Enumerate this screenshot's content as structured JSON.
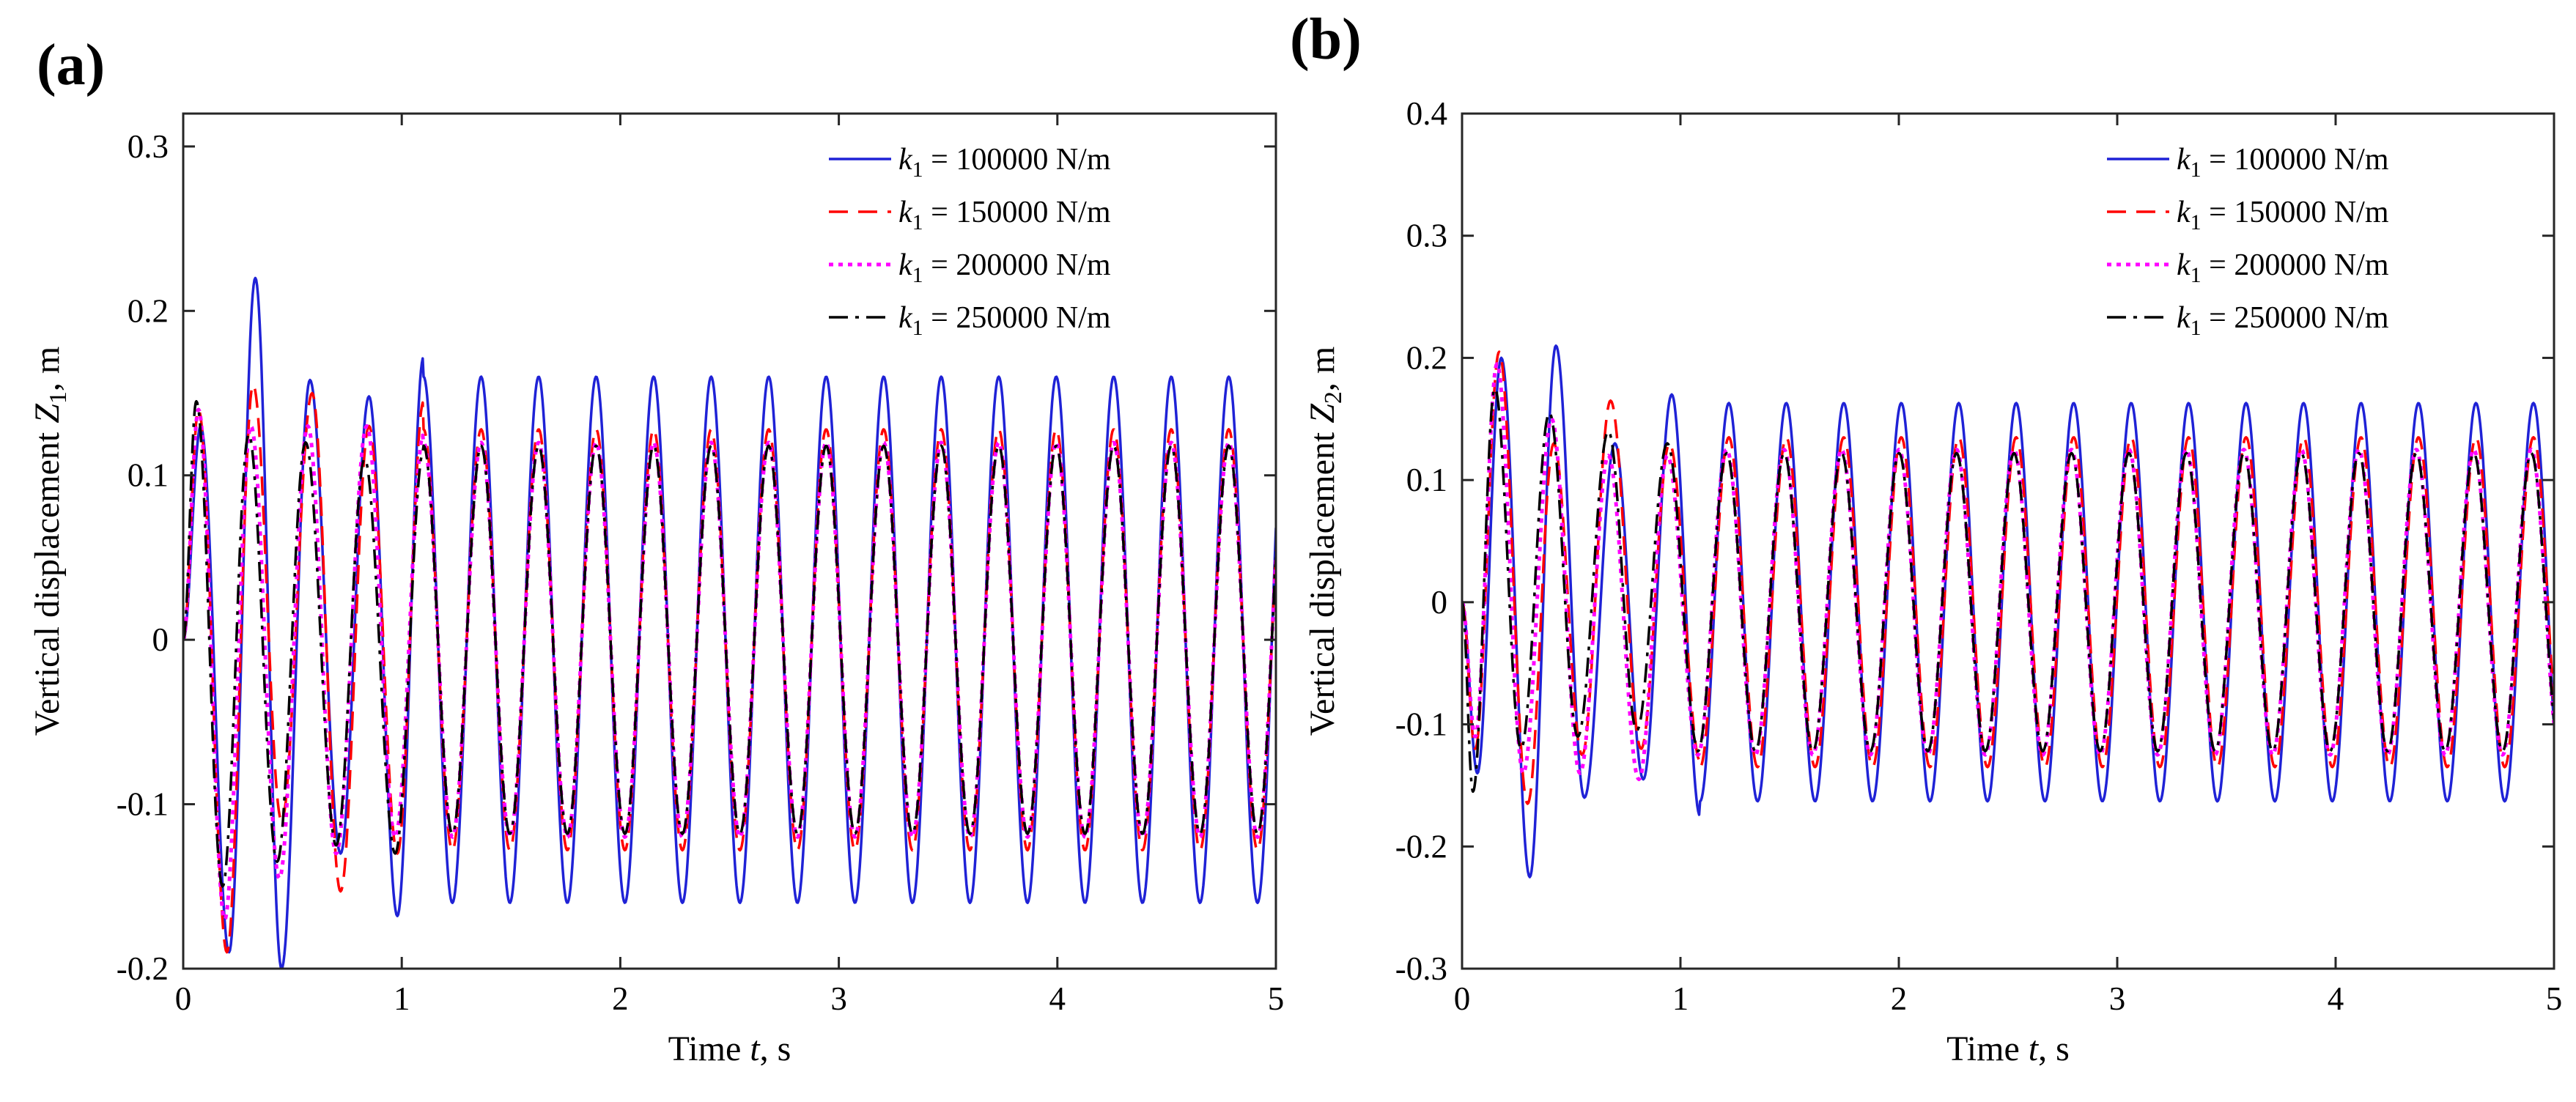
{
  "chart_data": [
    {
      "type": "line",
      "panel_label": "(a)",
      "xlabel_pre": "Time ",
      "xlabel_var": "t",
      "xlabel_post": ", s",
      "ylabel_pre": "Vertical displacement ",
      "ylabel_var": "Z",
      "ylabel_sub": "1",
      "ylabel_post": ", m",
      "xlim": [
        0,
        5
      ],
      "ylim": [
        -0.2,
        0.32
      ],
      "xticks": [
        0,
        1,
        2,
        3,
        4,
        5
      ],
      "xtick_labels": [
        "0",
        "1",
        "2",
        "3",
        "4",
        "5"
      ],
      "yticks": [
        -0.2,
        -0.1,
        0,
        0.1,
        0.2,
        0.3
      ],
      "ytick_labels": [
        "-0.2",
        "-0.1",
        "0",
        "0.1",
        "0.2",
        "0.3"
      ],
      "legend_location": "top-right",
      "series": [
        {
          "name": "k1 = 100000 N/m",
          "legend_var": "k",
          "legend_sub": "1",
          "legend_text": " = 100000 N/m",
          "color": "#1f22d6",
          "dash": "solid",
          "steady_amp": 0.16,
          "freq": 3.8,
          "early_points": [
            [
              0,
              0
            ],
            [
              0.08,
              0.13
            ],
            [
              0.21,
              -0.19
            ],
            [
              0.33,
              0.22
            ],
            [
              0.45,
              -0.2
            ],
            [
              0.58,
              0.158
            ],
            [
              0.72,
              -0.13
            ],
            [
              0.85,
              0.148
            ],
            [
              0.98,
              -0.168
            ],
            [
              1.1,
              0.172
            ]
          ]
        },
        {
          "name": "k1 = 150000 N/m",
          "legend_var": "k",
          "legend_sub": "1",
          "legend_text": " = 150000 N/m",
          "color": "#ff0000",
          "dash": "dashed",
          "steady_amp": 0.128,
          "freq": 3.8,
          "early_points": [
            [
              0,
              0
            ],
            [
              0.07,
              0.14
            ],
            [
              0.2,
              -0.19
            ],
            [
              0.32,
              0.155
            ],
            [
              0.45,
              -0.11
            ],
            [
              0.59,
              0.15
            ],
            [
              0.72,
              -0.153
            ],
            [
              0.85,
              0.13
            ],
            [
              0.98,
              -0.13
            ],
            [
              1.1,
              0.145
            ]
          ]
        },
        {
          "name": "k1 = 200000 N/m",
          "legend_var": "k",
          "legend_sub": "1",
          "legend_text": " = 200000 N/m",
          "color": "#ff00ff",
          "dash": "dotted",
          "steady_amp": 0.12,
          "freq": 3.8,
          "early_points": [
            [
              0,
              0
            ],
            [
              0.07,
              0.14
            ],
            [
              0.19,
              -0.17
            ],
            [
              0.31,
              0.13
            ],
            [
              0.44,
              -0.145
            ],
            [
              0.57,
              0.13
            ],
            [
              0.7,
              -0.13
            ],
            [
              0.84,
              0.13
            ],
            [
              0.97,
              -0.12
            ],
            [
              1.1,
              0.125
            ]
          ]
        },
        {
          "name": "k1 = 250000 N/m",
          "legend_var": "k",
          "legend_sub": "1",
          "legend_text": " = 250000 N/m",
          "color": "#000000",
          "dash": "dashdot",
          "steady_amp": 0.118,
          "freq": 3.8,
          "early_points": [
            [
              0,
              0
            ],
            [
              0.06,
              0.145
            ],
            [
              0.18,
              -0.15
            ],
            [
              0.3,
              0.125
            ],
            [
              0.43,
              -0.135
            ],
            [
              0.56,
              0.12
            ],
            [
              0.7,
              -0.125
            ],
            [
              0.83,
              0.11
            ],
            [
              0.97,
              -0.13
            ],
            [
              1.1,
              0.115
            ]
          ]
        }
      ]
    },
    {
      "type": "line",
      "panel_label": "(b)",
      "xlabel_pre": "Time ",
      "xlabel_var": "t",
      "xlabel_post": ", s",
      "ylabel_pre": "Vertical displacement ",
      "ylabel_var": "Z",
      "ylabel_sub": "2",
      "ylabel_post": ", m",
      "xlim": [
        0,
        5
      ],
      "ylim": [
        -0.3,
        0.4
      ],
      "xticks": [
        0,
        1,
        2,
        3,
        4,
        5
      ],
      "xtick_labels": [
        "0",
        "1",
        "2",
        "3",
        "4",
        "5"
      ],
      "yticks": [
        -0.3,
        -0.2,
        -0.1,
        0,
        0.1,
        0.2,
        0.3,
        0.4
      ],
      "ytick_labels": [
        "-0.3",
        "-0.2",
        "-0.1",
        "0",
        "0.1",
        "0.2",
        "0.3",
        "0.4"
      ],
      "legend_location": "top-right",
      "series": [
        {
          "name": "k1 = 100000 N/m",
          "legend_var": "k",
          "legend_sub": "1",
          "legend_text": " = 100000 N/m",
          "color": "#1f22d6",
          "dash": "solid",
          "steady_amp": 0.163,
          "freq": 3.8,
          "early_points": [
            [
              0,
              0
            ],
            [
              0.07,
              -0.14
            ],
            [
              0.18,
              0.2
            ],
            [
              0.31,
              -0.225
            ],
            [
              0.43,
              0.21
            ],
            [
              0.56,
              -0.16
            ],
            [
              0.7,
              0.13
            ],
            [
              0.83,
              -0.145
            ],
            [
              0.96,
              0.17
            ],
            [
              1.09,
              -0.175
            ]
          ]
        },
        {
          "name": "k1 = 150000 N/m",
          "legend_var": "k",
          "legend_sub": "1",
          "legend_text": " = 150000 N/m",
          "color": "#ff0000",
          "dash": "dashed",
          "steady_amp": 0.135,
          "freq": 3.8,
          "early_points": [
            [
              0,
              0
            ],
            [
              0.06,
              -0.12
            ],
            [
              0.17,
              0.205
            ],
            [
              0.3,
              -0.165
            ],
            [
              0.42,
              0.13
            ],
            [
              0.55,
              -0.125
            ],
            [
              0.68,
              0.165
            ],
            [
              0.82,
              -0.12
            ],
            [
              0.95,
              0.13
            ],
            [
              1.09,
              -0.13
            ]
          ]
        },
        {
          "name": "k1 = 200000 N/m",
          "legend_var": "k",
          "legend_sub": "1",
          "legend_text": " = 200000 N/m",
          "color": "#ff00ff",
          "dash": "dotted",
          "steady_amp": 0.125,
          "freq": 3.8,
          "early_points": [
            [
              0,
              0
            ],
            [
              0.06,
              -0.11
            ],
            [
              0.16,
              0.195
            ],
            [
              0.28,
              -0.14
            ],
            [
              0.41,
              0.15
            ],
            [
              0.54,
              -0.14
            ],
            [
              0.67,
              0.12
            ],
            [
              0.81,
              -0.145
            ],
            [
              0.94,
              0.12
            ],
            [
              1.08,
              -0.125
            ]
          ]
        },
        {
          "name": "k1 = 250000 N/m",
          "legend_var": "k",
          "legend_sub": "1",
          "legend_text": " = 250000 N/m",
          "color": "#000000",
          "dash": "dashdot",
          "steady_amp": 0.122,
          "freq": 3.8,
          "early_points": [
            [
              0,
              0
            ],
            [
              0.05,
              -0.155
            ],
            [
              0.15,
              0.175
            ],
            [
              0.27,
              -0.12
            ],
            [
              0.4,
              0.155
            ],
            [
              0.53,
              -0.11
            ],
            [
              0.67,
              0.14
            ],
            [
              0.8,
              -0.105
            ],
            [
              0.94,
              0.13
            ],
            [
              1.08,
              -0.12
            ]
          ]
        }
      ]
    }
  ]
}
